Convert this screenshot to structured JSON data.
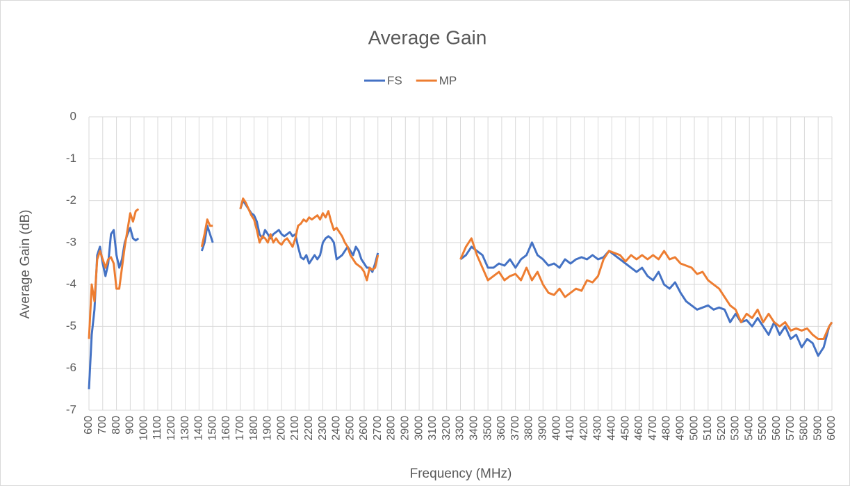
{
  "chart_data": {
    "type": "line",
    "title": "Average Gain",
    "x_label": "Frequency (MHz)",
    "y_label": "Average Gain (dB)",
    "legend": "top",
    "grid": true,
    "xlim": [
      600,
      6000
    ],
    "ylim": [
      -7,
      0
    ],
    "xticks": [
      600,
      700,
      800,
      900,
      1000,
      1100,
      1200,
      1300,
      1400,
      1500,
      1600,
      1700,
      1800,
      1900,
      2000,
      2100,
      2200,
      2300,
      2400,
      2500,
      2600,
      2700,
      2800,
      2900,
      3000,
      3100,
      3200,
      3300,
      3400,
      3500,
      3600,
      3700,
      3800,
      3900,
      4000,
      4100,
      4200,
      4300,
      4400,
      4500,
      4600,
      4700,
      4800,
      4900,
      5000,
      5100,
      5200,
      5300,
      5400,
      5500,
      5600,
      5700,
      5800,
      5900,
      6000
    ],
    "yticks": [
      0,
      -1,
      -2,
      -3,
      -4,
      -5,
      -6,
      -7
    ],
    "x": [
      600,
      620,
      640,
      660,
      680,
      700,
      720,
      740,
      760,
      780,
      800,
      820,
      840,
      860,
      880,
      900,
      920,
      940,
      960,
      980,
      1420,
      1440,
      1460,
      1480,
      1500,
      1520,
      1700,
      1720,
      1740,
      1760,
      1780,
      1800,
      1820,
      1840,
      1860,
      1880,
      1900,
      1920,
      1940,
      1960,
      1980,
      2000,
      2020,
      2040,
      2060,
      2080,
      2100,
      2120,
      2140,
      2160,
      2180,
      2200,
      2220,
      2240,
      2260,
      2280,
      2300,
      2320,
      2340,
      2360,
      2380,
      2400,
      2420,
      2440,
      2460,
      2480,
      2500,
      2520,
      2540,
      2560,
      2580,
      2600,
      2620,
      2640,
      2660,
      2680,
      2700,
      2720,
      3300,
      3340,
      3380,
      3420,
      3460,
      3500,
      3540,
      3580,
      3620,
      3660,
      3700,
      3740,
      3780,
      3820,
      3860,
      3900,
      3940,
      3980,
      4020,
      4060,
      4100,
      4140,
      4180,
      4220,
      4260,
      4300,
      4340,
      4380,
      4420,
      4460,
      4500,
      4540,
      4580,
      4620,
      4660,
      4700,
      4740,
      4780,
      4820,
      4860,
      4900,
      4940,
      4980,
      5020,
      5060,
      5100,
      5140,
      5180,
      5220,
      5260,
      5300,
      5340,
      5380,
      5420,
      5460,
      5500,
      5540,
      5580,
      5620,
      5660,
      5700,
      5740,
      5780,
      5820,
      5860,
      5900,
      5940,
      5980,
      6000
    ],
    "series": [
      {
        "name": "FS",
        "color": "#4472c4",
        "values": [
          -6.5,
          -5.2,
          -4.6,
          -3.3,
          -3.1,
          -3.5,
          -3.8,
          -3.5,
          -2.8,
          -2.7,
          -3.3,
          -3.6,
          -3.4,
          -3.0,
          -2.8,
          -2.65,
          -2.9,
          -2.95,
          -2.9,
          null,
          -3.2,
          -3.0,
          -2.6,
          -2.8,
          -3.0,
          null,
          -2.2,
          -2.0,
          -2.1,
          -2.2,
          -2.3,
          -2.35,
          -2.5,
          -2.8,
          -2.9,
          -2.7,
          -2.8,
          -2.9,
          -2.8,
          -2.75,
          -2.7,
          -2.8,
          -2.85,
          -2.8,
          -2.75,
          -2.85,
          -2.8,
          -3.1,
          -3.35,
          -3.4,
          -3.3,
          -3.5,
          -3.4,
          -3.3,
          -3.4,
          -3.3,
          -3.0,
          -2.9,
          -2.85,
          -2.9,
          -3.0,
          -3.4,
          -3.35,
          -3.3,
          -3.2,
          -3.1,
          -3.2,
          -3.3,
          -3.1,
          -3.2,
          -3.4,
          -3.5,
          -3.6,
          -3.6,
          -3.7,
          -3.5,
          -3.25,
          null,
          -3.4,
          -3.3,
          -3.1,
          -3.2,
          -3.3,
          -3.6,
          -3.6,
          -3.5,
          -3.55,
          -3.4,
          -3.6,
          -3.4,
          -3.3,
          -3.0,
          -3.3,
          -3.4,
          -3.55,
          -3.5,
          -3.6,
          -3.4,
          -3.5,
          -3.4,
          -3.35,
          -3.4,
          -3.3,
          -3.4,
          -3.35,
          -3.2,
          -3.3,
          -3.4,
          -3.5,
          -3.6,
          -3.7,
          -3.6,
          -3.8,
          -3.9,
          -3.7,
          -4.0,
          -4.1,
          -3.95,
          -4.2,
          -4.4,
          -4.5,
          -4.6,
          -4.55,
          -4.5,
          -4.6,
          -4.55,
          -4.6,
          -4.9,
          -4.7,
          -4.9,
          -4.85,
          -5.0,
          -4.8,
          -5.0,
          -5.2,
          -4.9,
          -5.2,
          -5.0,
          -5.3,
          -5.2,
          -5.5,
          -5.3,
          -5.4,
          -5.7,
          -5.5,
          -5.0,
          -4.9
        ]
      },
      {
        "name": "MP",
        "color": "#ed7d31",
        "values": [
          -5.3,
          -4.0,
          -4.4,
          -3.4,
          -3.2,
          -3.4,
          -3.6,
          -3.4,
          -3.35,
          -3.5,
          -4.1,
          -4.1,
          -3.6,
          -3.1,
          -2.7,
          -2.3,
          -2.5,
          -2.25,
          -2.2,
          null,
          -3.1,
          -2.8,
          -2.45,
          -2.6,
          -2.6,
          null,
          -2.2,
          -1.95,
          -2.05,
          -2.2,
          -2.35,
          -2.45,
          -2.7,
          -3.0,
          -2.85,
          -2.9,
          -3.0,
          -2.8,
          -3.0,
          -2.9,
          -3.0,
          -3.05,
          -2.95,
          -2.9,
          -3.0,
          -3.1,
          -2.9,
          -2.6,
          -2.55,
          -2.45,
          -2.5,
          -2.4,
          -2.45,
          -2.4,
          -2.35,
          -2.45,
          -2.3,
          -2.4,
          -2.25,
          -2.5,
          -2.7,
          -2.65,
          -2.75,
          -2.85,
          -3.0,
          -3.1,
          -3.3,
          -3.4,
          -3.5,
          -3.55,
          -3.6,
          -3.7,
          -3.9,
          -3.6,
          -3.65,
          -3.6,
          -3.3,
          null,
          -3.4,
          -3.1,
          -2.9,
          -3.3,
          -3.6,
          -3.9,
          -3.8,
          -3.7,
          -3.9,
          -3.8,
          -3.75,
          -3.9,
          -3.6,
          -3.9,
          -3.7,
          -4.0,
          -4.2,
          -4.25,
          -4.1,
          -4.3,
          -4.2,
          -4.1,
          -4.15,
          -3.9,
          -3.95,
          -3.8,
          -3.4,
          -3.2,
          -3.25,
          -3.3,
          -3.45,
          -3.3,
          -3.4,
          -3.3,
          -3.4,
          -3.3,
          -3.4,
          -3.2,
          -3.4,
          -3.35,
          -3.5,
          -3.55,
          -3.6,
          -3.75,
          -3.7,
          -3.9,
          -4.0,
          -4.1,
          -4.3,
          -4.5,
          -4.6,
          -4.9,
          -4.7,
          -4.8,
          -4.6,
          -4.9,
          -4.7,
          -4.9,
          -5.0,
          -4.9,
          -5.1,
          -5.05,
          -5.1,
          -5.05,
          -5.2,
          -5.3,
          -5.3,
          -5.0,
          -4.9
        ]
      }
    ]
  }
}
